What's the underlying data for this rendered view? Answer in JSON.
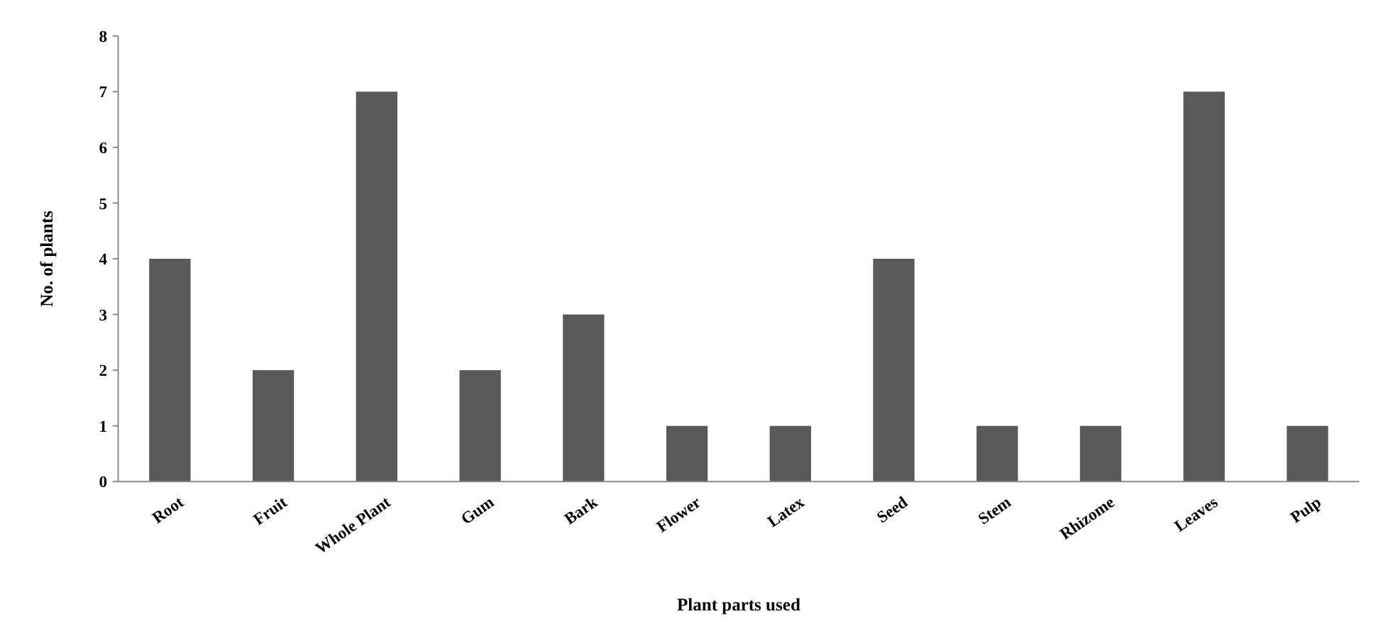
{
  "chart_data": {
    "type": "bar",
    "xlabel": "Plant parts used",
    "ylabel": "No. of plants",
    "categories": [
      "Root",
      "Fruit",
      "Whole Plant",
      "Gum",
      "Bark",
      "Flower",
      "Latex",
      "Seed",
      "Stem",
      "Rhizome",
      "Leaves",
      "Pulp"
    ],
    "values": [
      4,
      2,
      7,
      2,
      3,
      1,
      1,
      4,
      1,
      1,
      7,
      1
    ],
    "color": "#595959",
    "ylim": [
      0,
      8
    ],
    "yticks": [
      0,
      1,
      2,
      3,
      4,
      5,
      6,
      7,
      8
    ],
    "grid": false
  }
}
